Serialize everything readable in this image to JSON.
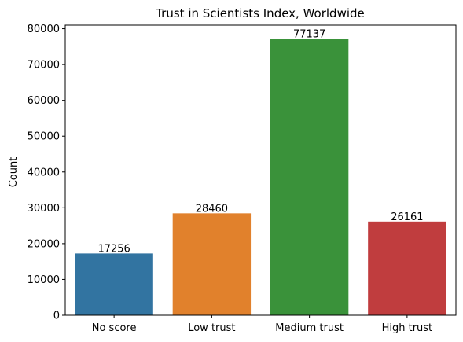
{
  "chart_data": {
    "type": "bar",
    "title": "Trust in Scientists Index, Worldwide",
    "xlabel": "",
    "ylabel": "Count",
    "categories": [
      "No score",
      "Low trust",
      "Medium trust",
      "High trust"
    ],
    "values": [
      17256,
      28460,
      77137,
      26161
    ],
    "data_labels": [
      "17256",
      "28460",
      "77137",
      "26161"
    ],
    "colors": [
      "#3274a1",
      "#e1812c",
      "#3a923a",
      "#c03d3e"
    ],
    "ylim": [
      0,
      81000
    ],
    "yticks": [
      0,
      10000,
      20000,
      30000,
      40000,
      50000,
      60000,
      70000,
      80000
    ],
    "grid": false,
    "legend": "none"
  }
}
